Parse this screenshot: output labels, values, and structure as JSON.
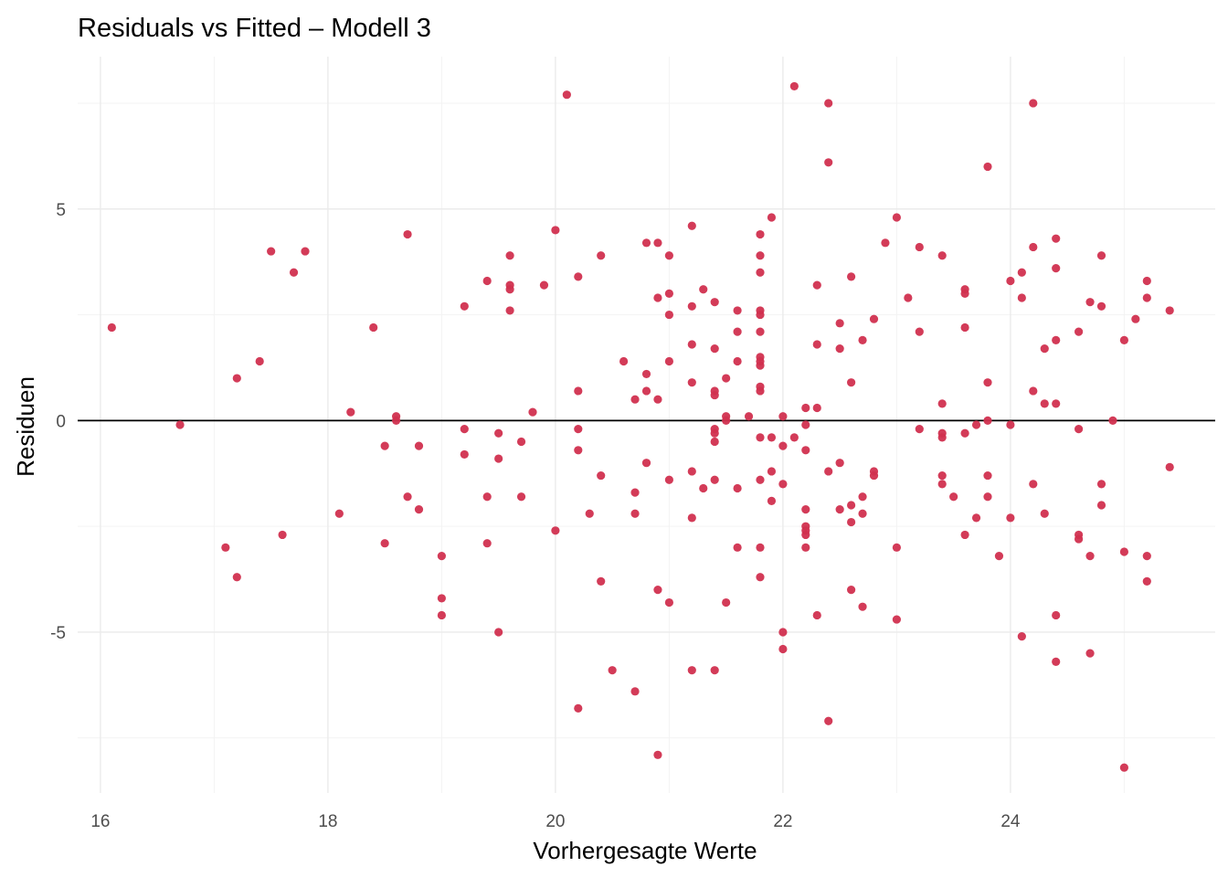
{
  "chart_data": {
    "type": "scatter",
    "title": "Residuals vs Fitted – Modell 3",
    "xlabel": "Vorhergesagte Werte",
    "ylabel": "Residuen",
    "xlim": [
      15.8,
      25.8
    ],
    "ylim": [
      -8.8,
      8.6
    ],
    "x_ticks": [
      16,
      18,
      20,
      22,
      24
    ],
    "x_tick_labels": [
      "16",
      "18",
      "20",
      "22",
      "24"
    ],
    "y_ticks": [
      -5,
      0,
      5
    ],
    "y_tick_labels": [
      "-5",
      "0",
      "5"
    ],
    "reference_line_y": 0,
    "grid": true,
    "legend": "none",
    "point_color": "#d1304f",
    "points": [
      [
        16.1,
        2.2
      ],
      [
        16.7,
        -0.1
      ],
      [
        17.1,
        -3.0
      ],
      [
        17.2,
        1.0
      ],
      [
        17.2,
        -3.7
      ],
      [
        17.4,
        1.4
      ],
      [
        17.5,
        4.0
      ],
      [
        17.6,
        -2.7
      ],
      [
        17.7,
        3.5
      ],
      [
        17.8,
        4.0
      ],
      [
        18.1,
        -2.2
      ],
      [
        18.2,
        0.2
      ],
      [
        18.4,
        2.2
      ],
      [
        18.5,
        -0.6
      ],
      [
        18.5,
        -2.9
      ],
      [
        18.6,
        0.1
      ],
      [
        18.6,
        0.0
      ],
      [
        18.7,
        4.4
      ],
      [
        18.7,
        -1.8
      ],
      [
        18.8,
        -0.6
      ],
      [
        18.8,
        -2.1
      ],
      [
        19.0,
        -3.2
      ],
      [
        19.0,
        -4.2
      ],
      [
        19.0,
        -4.6
      ],
      [
        19.2,
        2.7
      ],
      [
        19.2,
        -0.2
      ],
      [
        19.2,
        -0.8
      ],
      [
        19.4,
        3.3
      ],
      [
        19.4,
        -1.8
      ],
      [
        19.4,
        -2.9
      ],
      [
        19.5,
        -0.3
      ],
      [
        19.5,
        -0.9
      ],
      [
        19.5,
        -5.0
      ],
      [
        19.6,
        3.9
      ],
      [
        19.6,
        3.2
      ],
      [
        19.6,
        3.1
      ],
      [
        19.6,
        2.6
      ],
      [
        19.7,
        -0.5
      ],
      [
        19.7,
        -1.8
      ],
      [
        19.8,
        0.2
      ],
      [
        19.9,
        3.2
      ],
      [
        20.0,
        4.5
      ],
      [
        20.0,
        -2.6
      ],
      [
        20.1,
        7.7
      ],
      [
        20.2,
        3.4
      ],
      [
        20.2,
        0.7
      ],
      [
        20.2,
        -0.2
      ],
      [
        20.2,
        -0.7
      ],
      [
        20.2,
        -6.8
      ],
      [
        20.3,
        -2.2
      ],
      [
        20.4,
        3.9
      ],
      [
        20.4,
        -1.3
      ],
      [
        20.4,
        -3.8
      ],
      [
        20.5,
        -5.9
      ],
      [
        20.6,
        1.4
      ],
      [
        20.7,
        0.5
      ],
      [
        20.7,
        -1.7
      ],
      [
        20.7,
        -2.2
      ],
      [
        20.7,
        -6.4
      ],
      [
        20.8,
        4.2
      ],
      [
        20.8,
        1.1
      ],
      [
        20.8,
        0.7
      ],
      [
        20.8,
        -1.0
      ],
      [
        20.9,
        4.2
      ],
      [
        20.9,
        2.9
      ],
      [
        20.9,
        0.5
      ],
      [
        20.9,
        -4.0
      ],
      [
        20.9,
        -7.9
      ],
      [
        21.0,
        3.9
      ],
      [
        21.0,
        3.0
      ],
      [
        21.0,
        2.5
      ],
      [
        21.0,
        1.4
      ],
      [
        21.0,
        -1.4
      ],
      [
        21.0,
        -4.3
      ],
      [
        21.2,
        4.6
      ],
      [
        21.2,
        2.7
      ],
      [
        21.2,
        1.8
      ],
      [
        21.2,
        0.9
      ],
      [
        21.2,
        -1.2
      ],
      [
        21.2,
        -2.3
      ],
      [
        21.2,
        -5.9
      ],
      [
        21.3,
        3.1
      ],
      [
        21.3,
        -1.6
      ],
      [
        21.4,
        2.8
      ],
      [
        21.4,
        1.7
      ],
      [
        21.4,
        0.7
      ],
      [
        21.4,
        0.6
      ],
      [
        21.4,
        -0.2
      ],
      [
        21.4,
        -0.3
      ],
      [
        21.4,
        -0.5
      ],
      [
        21.4,
        -1.4
      ],
      [
        21.4,
        -5.9
      ],
      [
        21.5,
        1.0
      ],
      [
        21.5,
        0.1
      ],
      [
        21.5,
        0.0
      ],
      [
        21.5,
        -4.3
      ],
      [
        21.6,
        2.6
      ],
      [
        21.6,
        2.1
      ],
      [
        21.6,
        1.4
      ],
      [
        21.6,
        -1.6
      ],
      [
        21.6,
        -3.0
      ],
      [
        21.7,
        0.1
      ],
      [
        21.8,
        4.4
      ],
      [
        21.8,
        3.9
      ],
      [
        21.8,
        3.5
      ],
      [
        21.8,
        2.6
      ],
      [
        21.8,
        2.5
      ],
      [
        21.8,
        2.1
      ],
      [
        21.8,
        1.5
      ],
      [
        21.8,
        1.4
      ],
      [
        21.8,
        1.3
      ],
      [
        21.8,
        0.8
      ],
      [
        21.8,
        0.7
      ],
      [
        21.8,
        -0.4
      ],
      [
        21.8,
        -1.4
      ],
      [
        21.8,
        -3.0
      ],
      [
        21.8,
        -3.7
      ],
      [
        21.9,
        4.8
      ],
      [
        21.9,
        -0.4
      ],
      [
        21.9,
        -1.2
      ],
      [
        21.9,
        -1.9
      ],
      [
        22.0,
        0.1
      ],
      [
        22.0,
        -0.6
      ],
      [
        22.0,
        -1.5
      ],
      [
        22.0,
        -5.0
      ],
      [
        22.0,
        -5.4
      ],
      [
        22.1,
        7.9
      ],
      [
        22.1,
        -0.4
      ],
      [
        22.2,
        0.3
      ],
      [
        22.2,
        -0.1
      ],
      [
        22.2,
        -0.7
      ],
      [
        22.2,
        -2.1
      ],
      [
        22.2,
        -2.5
      ],
      [
        22.2,
        -2.6
      ],
      [
        22.2,
        -2.7
      ],
      [
        22.2,
        -3.0
      ],
      [
        22.3,
        3.2
      ],
      [
        22.3,
        1.8
      ],
      [
        22.3,
        0.3
      ],
      [
        22.3,
        -4.6
      ],
      [
        22.4,
        7.5
      ],
      [
        22.4,
        6.1
      ],
      [
        22.4,
        -1.2
      ],
      [
        22.4,
        -7.1
      ],
      [
        22.5,
        2.3
      ],
      [
        22.5,
        1.7
      ],
      [
        22.5,
        -1.0
      ],
      [
        22.5,
        -2.1
      ],
      [
        22.6,
        3.4
      ],
      [
        22.6,
        0.9
      ],
      [
        22.6,
        -2.0
      ],
      [
        22.6,
        -2.4
      ],
      [
        22.6,
        -4.0
      ],
      [
        22.7,
        1.9
      ],
      [
        22.7,
        -1.8
      ],
      [
        22.7,
        -2.2
      ],
      [
        22.7,
        -4.4
      ],
      [
        22.8,
        2.4
      ],
      [
        22.8,
        -1.2
      ],
      [
        22.8,
        -1.3
      ],
      [
        22.9,
        4.2
      ],
      [
        23.0,
        4.8
      ],
      [
        23.0,
        -3.0
      ],
      [
        23.0,
        -4.7
      ],
      [
        23.1,
        2.9
      ],
      [
        23.2,
        4.1
      ],
      [
        23.2,
        2.1
      ],
      [
        23.2,
        -0.2
      ],
      [
        23.4,
        3.9
      ],
      [
        23.4,
        0.4
      ],
      [
        23.4,
        -0.3
      ],
      [
        23.4,
        -0.4
      ],
      [
        23.4,
        -1.3
      ],
      [
        23.4,
        -1.5
      ],
      [
        23.5,
        -1.8
      ],
      [
        23.6,
        3.1
      ],
      [
        23.6,
        3.0
      ],
      [
        23.6,
        2.2
      ],
      [
        23.6,
        -0.3
      ],
      [
        23.6,
        -2.7
      ],
      [
        23.7,
        -0.1
      ],
      [
        23.7,
        -2.3
      ],
      [
        23.8,
        6.0
      ],
      [
        23.8,
        0.9
      ],
      [
        23.8,
        0.0
      ],
      [
        23.8,
        -1.3
      ],
      [
        23.8,
        -1.8
      ],
      [
        23.9,
        -3.2
      ],
      [
        24.0,
        3.3
      ],
      [
        24.0,
        -0.1
      ],
      [
        24.0,
        -2.3
      ],
      [
        24.1,
        3.5
      ],
      [
        24.1,
        2.9
      ],
      [
        24.1,
        -5.1
      ],
      [
        24.2,
        7.5
      ],
      [
        24.2,
        4.1
      ],
      [
        24.2,
        0.7
      ],
      [
        24.2,
        -1.5
      ],
      [
        24.3,
        1.7
      ],
      [
        24.3,
        0.4
      ],
      [
        24.3,
        -2.2
      ],
      [
        24.4,
        4.3
      ],
      [
        24.4,
        3.6
      ],
      [
        24.4,
        1.9
      ],
      [
        24.4,
        0.4
      ],
      [
        24.4,
        -4.6
      ],
      [
        24.4,
        -5.7
      ],
      [
        24.6,
        2.1
      ],
      [
        24.6,
        -0.2
      ],
      [
        24.6,
        -2.7
      ],
      [
        24.6,
        -2.8
      ],
      [
        24.7,
        2.8
      ],
      [
        24.7,
        -3.2
      ],
      [
        24.7,
        -5.5
      ],
      [
        24.8,
        3.9
      ],
      [
        24.8,
        2.7
      ],
      [
        24.8,
        -1.5
      ],
      [
        24.8,
        -2.0
      ],
      [
        24.9,
        0.0
      ],
      [
        25.0,
        1.9
      ],
      [
        25.0,
        -3.1
      ],
      [
        25.0,
        -8.2
      ],
      [
        25.1,
        2.4
      ],
      [
        25.2,
        3.3
      ],
      [
        25.2,
        2.9
      ],
      [
        25.2,
        -3.2
      ],
      [
        25.2,
        -3.8
      ],
      [
        25.4,
        2.6
      ],
      [
        25.4,
        -1.1
      ]
    ]
  }
}
